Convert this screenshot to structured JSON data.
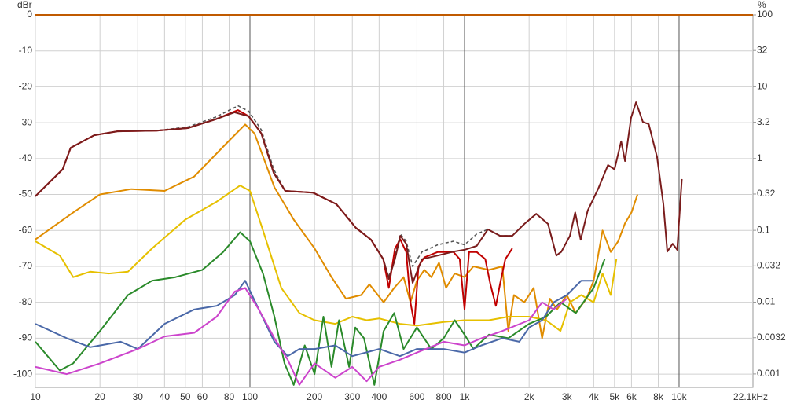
{
  "chart_data": {
    "type": "line",
    "y_label": "dBr",
    "y2_label": "%",
    "xscale": "log",
    "y2scale": "log",
    "grid": true,
    "xlim": [
      10,
      22100
    ],
    "ylim": [
      -103.7,
      0
    ],
    "y2lim": [
      0.00065,
      100
    ],
    "xticks": [
      10,
      20,
      30,
      40,
      50,
      60,
      80,
      100,
      200,
      300,
      400,
      600,
      800,
      {
        "value": 1000,
        "label": "1k"
      },
      {
        "value": 2000,
        "label": "2k"
      },
      {
        "value": 3000,
        "label": "3k"
      },
      {
        "value": 4000,
        "label": "4k"
      },
      {
        "value": 5000,
        "label": "5k"
      },
      {
        "value": 6000,
        "label": "6k"
      },
      {
        "value": 8000,
        "label": "8k"
      },
      {
        "value": 10000,
        "label": "10k"
      },
      {
        "value": 22100,
        "label": "22.1kHz"
      }
    ],
    "yticks": [
      0,
      -10,
      -20,
      -30,
      -40,
      -50,
      -60,
      -70,
      -80,
      -90,
      -100
    ],
    "y2ticks": [
      100,
      32,
      10,
      3.2,
      1,
      0.32,
      0.1,
      0.032,
      0.01,
      0.0032,
      0.001
    ],
    "series": [
      {
        "color": "#c05a00",
        "x": [
          10,
          22100
        ],
        "values": [
          0,
          0
        ]
      },
      {
        "color": "#e08c00",
        "x": [
          10,
          15,
          20,
          28,
          40,
          55,
          80,
          95,
          105,
          130,
          160,
          200,
          240,
          280,
          330,
          360,
          420,
          470,
          520,
          560,
          600,
          650,
          700,
          760,
          820,
          900,
          1000,
          1100,
          1300,
          1500,
          1600,
          1700,
          1900,
          2100,
          2300,
          2500,
          2700,
          3000,
          3300,
          3700,
          4000,
          4400,
          4800,
          5200,
          5600,
          6000,
          6400
        ],
        "values": [
          -62.5,
          -55,
          -50,
          -48.5,
          -49,
          -45,
          -35,
          -30.5,
          -33,
          -48,
          -57,
          -65,
          -73,
          -79,
          -78,
          -75,
          -80,
          -76,
          -73,
          -80,
          -74,
          -71,
          -73,
          -69,
          -76,
          -72,
          -73,
          -70,
          -71,
          -70,
          -88,
          -78,
          -80,
          -76,
          -90,
          -79,
          -82,
          -78,
          -83,
          -79,
          -74,
          -60,
          -66,
          -63,
          -58,
          -55,
          -50
        ]
      },
      {
        "color": "#e6c000",
        "x": [
          10,
          13,
          15,
          18,
          22,
          27,
          35,
          50,
          70,
          90,
          100,
          115,
          140,
          170,
          200,
          250,
          300,
          350,
          400,
          500,
          600,
          800,
          1000,
          1300,
          1600,
          2000,
          2400,
          2800,
          3100,
          3500,
          4000,
          4400,
          4800,
          5100
        ],
        "values": [
          -63,
          -67,
          -73,
          -71.5,
          -72,
          -71.5,
          -65,
          -57,
          -52,
          -47.5,
          -49,
          -60,
          -76,
          -83,
          -85,
          -86,
          -84,
          -85,
          -84.5,
          -86,
          -86.5,
          -85.5,
          -85,
          -85,
          -84,
          -84,
          -85,
          -88,
          -80,
          -78,
          -80,
          -72,
          -78,
          -68
        ]
      },
      {
        "color": "#2a8a2a",
        "x": [
          10,
          13,
          15,
          20,
          27,
          35,
          45,
          60,
          75,
          90,
          100,
          115,
          130,
          145,
          160,
          180,
          200,
          220,
          240,
          260,
          290,
          310,
          340,
          380,
          420,
          470,
          520,
          600,
          700,
          800,
          900,
          1000,
          1100,
          1300,
          1600,
          2000,
          2400,
          2800,
          3300,
          4000,
          4500
        ],
        "values": [
          -91,
          -99,
          -97,
          -88,
          -78,
          -74,
          -73,
          -71,
          -66,
          -60.5,
          -63,
          -72,
          -84,
          -97,
          -103,
          -92,
          -100,
          -84,
          -98,
          -85,
          -98,
          -87,
          -90,
          -103,
          -88,
          -83,
          -93,
          -87,
          -93,
          -90,
          -85,
          -89,
          -93,
          -89,
          -90,
          -86,
          -84,
          -80,
          -83,
          -76,
          -68
        ]
      },
      {
        "color": "#4a68a8",
        "x": [
          10,
          14,
          18,
          25,
          30,
          40,
          55,
          70,
          85,
          95,
          110,
          130,
          150,
          170,
          200,
          250,
          300,
          400,
          500,
          600,
          800,
          1000,
          1200,
          1500,
          1800,
          2000,
          2300,
          2600,
          3000,
          3500,
          4000
        ],
        "values": [
          -86,
          -90,
          -92.5,
          -91,
          -93,
          -86,
          -82,
          -81,
          -78,
          -74,
          -82,
          -91,
          -95,
          -93,
          -93,
          -92,
          -95,
          -93,
          -95,
          -93,
          -93,
          -94,
          -92,
          -90,
          -91,
          -87,
          -85,
          -80,
          -78,
          -74,
          -74
        ]
      },
      {
        "color": "#cc44cc",
        "x": [
          10,
          14,
          20,
          30,
          40,
          55,
          70,
          85,
          95,
          110,
          130,
          150,
          170,
          200,
          250,
          300,
          350,
          400,
          500,
          600,
          800,
          1000,
          1200,
          1500,
          2000,
          2300,
          2600,
          3000
        ],
        "values": [
          -98,
          -100,
          -97,
          -93,
          -89.5,
          -88.5,
          -84,
          -77,
          -76,
          -82,
          -90,
          -96,
          -103,
          -97,
          -101,
          -98,
          -102,
          -98,
          -96,
          -94,
          -91,
          -92,
          -90,
          -88,
          -85,
          -80,
          -82,
          -79
        ]
      },
      {
        "color": "#555555",
        "dash": true,
        "x": [
          10,
          13.4,
          14.6,
          18.8,
          24.1,
          36.7,
          51.3,
          68.8,
          88,
          98.6,
          113,
          129,
          146,
          197,
          253,
          312,
          367,
          418,
          444,
          474,
          502,
          535,
          573,
          633,
          750,
          888,
          1000,
          1140,
          1285,
          1463,
          1670,
          1900,
          2160,
          2450,
          2680,
          2830
        ],
        "values": [
          -50.5,
          -43,
          -37,
          -33.5,
          -32.4,
          -32.2,
          -31.2,
          -28.5,
          -25.3,
          -26.8,
          -32,
          -43,
          -49,
          -49.5,
          -52.7,
          -59.3,
          -62.6,
          -68,
          -73,
          -67,
          -61,
          -63,
          -70,
          -66,
          -64,
          -63,
          -64,
          -61,
          -59.7,
          -61.5,
          -61.5,
          -58.2,
          -55.4,
          -58.2,
          -67,
          -66
        ]
      },
      {
        "color": "#c00000",
        "x": [
          10,
          13.4,
          14.6,
          18.8,
          24.1,
          36.7,
          51.3,
          68.8,
          88,
          98.6,
          113,
          129,
          146,
          197,
          253,
          312,
          367,
          418,
          444,
          474,
          502,
          535,
          560,
          584,
          610,
          650,
          750,
          888,
          950,
          1000,
          1050,
          1140,
          1250,
          1320,
          1400,
          1463,
          1550,
          1670
        ],
        "values": [
          -50.5,
          -43,
          -37,
          -33.5,
          -32.4,
          -32.2,
          -31.5,
          -29.1,
          -26.5,
          -28.2,
          -33,
          -44,
          -49,
          -49.5,
          -52.7,
          -59.3,
          -62.6,
          -68,
          -76,
          -65,
          -62.5,
          -66,
          -80,
          -86,
          -70,
          -67.5,
          -66,
          -66,
          -68,
          -82,
          -66,
          -66,
          -68,
          -75,
          -81,
          -75,
          -68,
          -65
        ]
      },
      {
        "color": "#7a1c1c",
        "x": [
          10,
          13.4,
          14.6,
          18.8,
          24.1,
          36.7,
          51.3,
          68.8,
          84.7,
          98.6,
          113,
          129,
          146,
          197,
          253,
          312,
          367,
          418,
          444,
          474,
          502,
          535,
          573,
          633,
          750,
          888,
          1000,
          1140,
          1285,
          1463,
          1670,
          1900,
          2160,
          2450,
          2680,
          2830,
          3100,
          3280,
          3480,
          3750,
          4200,
          4660,
          5000,
          5370,
          5600,
          5970,
          6300,
          6780,
          7220,
          7900,
          8450,
          8810,
          9330,
          9800,
          10300
        ],
        "values": [
          -50.5,
          -43,
          -37,
          -33.5,
          -32.4,
          -32.2,
          -31.5,
          -29.1,
          -27.1,
          -28.2,
          -33,
          -44,
          -49,
          -49.5,
          -52.7,
          -59.3,
          -62.6,
          -68,
          -73.5,
          -68,
          -61.5,
          -63.7,
          -74.6,
          -68,
          -67,
          -65.9,
          -65.4,
          -64.3,
          -59.7,
          -61.5,
          -61.5,
          -58.2,
          -55.4,
          -58.2,
          -67,
          -65.9,
          -61.5,
          -55,
          -62.6,
          -54.5,
          -48.4,
          -41.8,
          -43,
          -35.2,
          -40.7,
          -28.7,
          -24.3,
          -29.8,
          -30.4,
          -39.6,
          -52.7,
          -65.9,
          -63.7,
          -65.4,
          -45.7
        ]
      }
    ]
  }
}
